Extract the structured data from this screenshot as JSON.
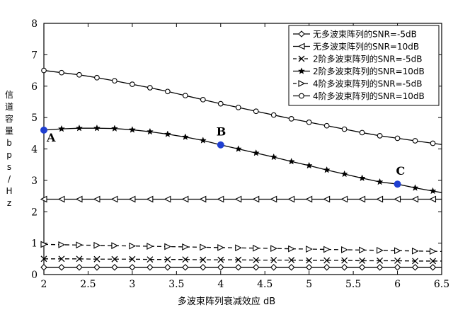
{
  "chart_data": {
    "type": "line",
    "xlabel": "多波束阵列衰减效应 dB",
    "ylabel": "信道容量bps/Hz",
    "xlim": [
      2,
      6.5
    ],
    "ylim": [
      0,
      8
    ],
    "xticks": [
      2,
      2.5,
      3,
      3.5,
      4,
      4.5,
      5,
      5.5,
      6,
      6.5
    ],
    "yticks": [
      0,
      1,
      2,
      3,
      4,
      5,
      6,
      7,
      8
    ],
    "grid": false,
    "legend_position": "top-right",
    "x": [
      2.0,
      2.2,
      2.4,
      2.6,
      2.8,
      3.0,
      3.2,
      3.4,
      3.6,
      3.8,
      4.0,
      4.2,
      4.4,
      4.6,
      4.8,
      5.0,
      5.2,
      5.4,
      5.6,
      5.8,
      6.0,
      6.2,
      6.4
    ],
    "series": [
      {
        "name": "无多波束阵列的SNR=-5dB",
        "marker": "diamond",
        "dash": "solid",
        "values": [
          0.23,
          0.23,
          0.23,
          0.23,
          0.23,
          0.23,
          0.23,
          0.23,
          0.23,
          0.23,
          0.23,
          0.23,
          0.23,
          0.23,
          0.23,
          0.23,
          0.23,
          0.23,
          0.23,
          0.23,
          0.23,
          0.23,
          0.23
        ]
      },
      {
        "name": "无多波束阵列的SNR=10dB",
        "marker": "triangle-left",
        "dash": "solid",
        "values": [
          2.4,
          2.4,
          2.4,
          2.4,
          2.4,
          2.4,
          2.4,
          2.4,
          2.4,
          2.4,
          2.4,
          2.4,
          2.4,
          2.4,
          2.4,
          2.4,
          2.4,
          2.4,
          2.4,
          2.4,
          2.4,
          2.4,
          2.4
        ]
      },
      {
        "name": "2阶多波束阵列的SNR=-5dB",
        "marker": "x",
        "dash": "dashed",
        "values": [
          0.5,
          0.5,
          0.5,
          0.49,
          0.49,
          0.49,
          0.48,
          0.48,
          0.48,
          0.47,
          0.47,
          0.47,
          0.46,
          0.46,
          0.46,
          0.45,
          0.45,
          0.45,
          0.44,
          0.44,
          0.44,
          0.43,
          0.43
        ]
      },
      {
        "name": "2阶多波束阵列的SNR=10dB",
        "marker": "star",
        "dash": "solid",
        "values": [
          4.6,
          4.64,
          4.66,
          4.66,
          4.65,
          4.61,
          4.55,
          4.47,
          4.38,
          4.27,
          4.13,
          4.0,
          3.87,
          3.74,
          3.6,
          3.47,
          3.33,
          3.2,
          3.07,
          2.95,
          2.88,
          2.76,
          2.66
        ]
      },
      {
        "name": "4阶多波束阵列的SNR=-5dB",
        "marker": "triangle-right",
        "dash": "dashed",
        "values": [
          0.96,
          0.95,
          0.94,
          0.93,
          0.92,
          0.91,
          0.9,
          0.89,
          0.88,
          0.87,
          0.86,
          0.85,
          0.84,
          0.83,
          0.82,
          0.81,
          0.8,
          0.79,
          0.78,
          0.77,
          0.76,
          0.75,
          0.74
        ]
      },
      {
        "name": "4阶多波束阵列的SNR=10dB",
        "marker": "circle",
        "dash": "solid",
        "values": [
          6.5,
          6.43,
          6.36,
          6.27,
          6.17,
          6.06,
          5.95,
          5.83,
          5.7,
          5.57,
          5.44,
          5.32,
          5.2,
          5.08,
          4.96,
          4.85,
          4.74,
          4.63,
          4.52,
          4.42,
          4.34,
          4.26,
          4.18
        ]
      }
    ],
    "annotations": [
      {
        "label": "A",
        "x": 2.0,
        "y": 4.6,
        "color": "#1f3fd1"
      },
      {
        "label": "B",
        "x": 4.0,
        "y": 4.13,
        "color": "#1f3fd1"
      },
      {
        "label": "C",
        "x": 6.0,
        "y": 2.88,
        "color": "#1f3fd1"
      }
    ]
  }
}
